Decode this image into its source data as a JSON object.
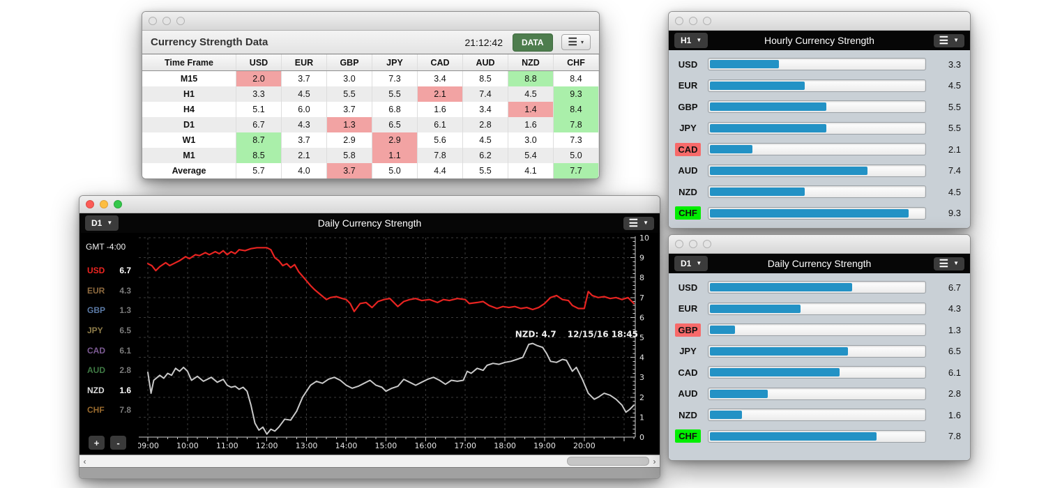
{
  "table_window": {
    "title": "Currency Strength Data",
    "clock": "21:12:42",
    "data_button_label": "DATA",
    "columns": [
      "Time Frame",
      "USD",
      "EUR",
      "GBP",
      "JPY",
      "CAD",
      "AUD",
      "NZD",
      "CHF"
    ],
    "rows": [
      {
        "label": "M15",
        "values": [
          "2.0",
          "3.7",
          "3.0",
          "7.3",
          "3.4",
          "8.5",
          "8.8",
          "8.4"
        ],
        "min": 0,
        "max": 6
      },
      {
        "label": "H1",
        "values": [
          "3.3",
          "4.5",
          "5.5",
          "5.5",
          "2.1",
          "7.4",
          "4.5",
          "9.3"
        ],
        "min": 4,
        "max": 7
      },
      {
        "label": "H4",
        "values": [
          "5.1",
          "6.0",
          "3.7",
          "6.8",
          "1.6",
          "3.4",
          "1.4",
          "8.4"
        ],
        "min": 6,
        "max": 7
      },
      {
        "label": "D1",
        "values": [
          "6.7",
          "4.3",
          "1.3",
          "6.5",
          "6.1",
          "2.8",
          "1.6",
          "7.8"
        ],
        "min": 2,
        "max": 7
      },
      {
        "label": "W1",
        "values": [
          "8.7",
          "3.7",
          "2.9",
          "2.9",
          "5.6",
          "4.5",
          "3.0",
          "7.3"
        ],
        "min": 3,
        "max": 0
      },
      {
        "label": "M1",
        "values": [
          "8.5",
          "2.1",
          "5.8",
          "1.1",
          "7.8",
          "6.2",
          "5.4",
          "5.0"
        ],
        "min": 3,
        "max": 0
      },
      {
        "label": "Average",
        "values": [
          "5.7",
          "4.0",
          "3.7",
          "5.0",
          "4.4",
          "5.5",
          "4.1",
          "7.7"
        ],
        "min": 2,
        "max": 7
      }
    ],
    "colors": {
      "min_cell": "#f2a3a3",
      "max_cell": "#aaefaa",
      "data_button": "#4e7d4e"
    }
  },
  "chart_window": {
    "timeframe_value": "D1",
    "title": "Daily Currency Strength",
    "gmt_label": "GMT -4:00",
    "zoom_in_label": "+",
    "zoom_out_label": "-",
    "legend": [
      {
        "code": "USD",
        "value": "6.7",
        "color": "#ee2521",
        "active": true
      },
      {
        "code": "EUR",
        "value": "4.3",
        "color": "#8f6b3f",
        "active": false
      },
      {
        "code": "GBP",
        "value": "1.3",
        "color": "#5b7aa6",
        "active": false
      },
      {
        "code": "JPY",
        "value": "6.5",
        "color": "#8f7d4a",
        "active": false
      },
      {
        "code": "CAD",
        "value": "6.1",
        "color": "#7d5b94",
        "active": false
      },
      {
        "code": "AUD",
        "value": "2.8",
        "color": "#3f7a44",
        "active": false
      },
      {
        "code": "NZD",
        "value": "1.6",
        "color": "#dcdcdc",
        "active": true
      },
      {
        "code": "CHF",
        "value": "7.8",
        "color": "#9a6b2e",
        "active": false
      }
    ]
  },
  "hourly_window": {
    "timeframe_value": "H1",
    "title": "Hourly Currency Strength"
  },
  "daily_window": {
    "timeframe_value": "D1",
    "title": "Daily Currency Strength"
  },
  "chart_data": [
    {
      "id": "daily_line",
      "type": "line",
      "title": "Daily Currency Strength",
      "ylim": [
        0,
        10
      ],
      "x_ticks": [
        "09:00",
        "10:00",
        "11:00",
        "12:00",
        "13:00",
        "14:00",
        "15:00",
        "16:00",
        "17:00",
        "18:00",
        "19:00",
        "20:00"
      ],
      "grid": true,
      "annotation": {
        "label": "NZD: 4.7",
        "timestamp": "12/15/16 18:45",
        "x": 18.75,
        "y": 4.7
      },
      "series": [
        {
          "name": "USD",
          "color": "#e82421",
          "x": [
            9.0,
            9.1,
            9.2,
            9.3,
            9.45,
            9.55,
            9.65,
            9.8,
            9.95,
            10.05,
            10.2,
            10.3,
            10.45,
            10.55,
            10.7,
            10.8,
            10.9,
            11.0,
            11.1,
            11.2,
            11.3,
            11.45,
            11.6,
            11.75,
            11.9,
            12.0,
            12.1,
            12.2,
            12.3,
            12.4,
            12.5,
            12.6,
            12.7,
            12.8,
            12.95,
            13.1,
            13.2,
            13.35,
            13.5,
            13.6,
            13.75,
            13.9,
            14.0,
            14.1,
            14.2,
            14.35,
            14.5,
            14.65,
            14.8,
            14.95,
            15.1,
            15.3,
            15.45,
            15.6,
            15.75,
            15.9,
            16.1,
            16.3,
            16.45,
            16.6,
            16.8,
            17.0,
            17.1,
            17.3,
            17.45,
            17.6,
            17.8,
            17.95,
            18.1,
            18.25,
            18.4,
            18.55,
            18.7,
            18.85,
            19.0,
            19.15,
            19.3,
            19.45,
            19.6,
            19.7,
            19.85,
            20.0,
            20.1,
            20.2,
            20.35,
            20.5,
            20.65,
            20.8,
            20.95,
            21.1,
            21.25
          ],
          "y": [
            8.7,
            8.6,
            8.35,
            8.55,
            8.75,
            8.6,
            8.7,
            8.85,
            9.05,
            8.95,
            9.15,
            9.1,
            9.25,
            9.15,
            9.3,
            9.2,
            9.35,
            9.15,
            9.3,
            9.2,
            9.4,
            9.35,
            9.45,
            9.5,
            9.5,
            9.5,
            9.4,
            9.0,
            8.85,
            8.6,
            8.7,
            8.5,
            8.65,
            8.3,
            7.95,
            7.6,
            7.4,
            7.15,
            6.9,
            7.0,
            7.05,
            6.95,
            6.9,
            6.7,
            6.3,
            6.7,
            6.75,
            6.5,
            6.8,
            6.9,
            6.95,
            6.55,
            6.8,
            6.9,
            6.95,
            6.85,
            6.9,
            6.75,
            6.9,
            6.85,
            6.95,
            6.9,
            6.7,
            6.75,
            6.8,
            6.6,
            6.45,
            6.55,
            6.5,
            6.55,
            6.45,
            6.5,
            6.4,
            6.5,
            6.7,
            7.0,
            7.1,
            6.9,
            6.85,
            6.6,
            6.45,
            6.45,
            7.3,
            7.1,
            7.0,
            7.05,
            6.95,
            7.0,
            6.9,
            7.0,
            6.7
          ]
        },
        {
          "name": "NZD",
          "color": "#c9c9c9",
          "x": [
            9.0,
            9.08,
            9.15,
            9.3,
            9.4,
            9.5,
            9.6,
            9.7,
            9.8,
            9.9,
            10.0,
            10.1,
            10.25,
            10.4,
            10.5,
            10.6,
            10.75,
            10.9,
            11.0,
            11.1,
            11.2,
            11.3,
            11.4,
            11.5,
            11.6,
            11.7,
            11.8,
            11.9,
            12.0,
            12.1,
            12.2,
            12.3,
            12.45,
            12.6,
            12.75,
            12.9,
            13.0,
            13.1,
            13.25,
            13.4,
            13.55,
            13.7,
            13.85,
            14.0,
            14.15,
            14.3,
            14.45,
            14.6,
            14.75,
            14.9,
            15.0,
            15.15,
            15.3,
            15.45,
            15.6,
            15.75,
            15.9,
            16.05,
            16.2,
            16.35,
            16.5,
            16.65,
            16.8,
            16.95,
            17.05,
            17.15,
            17.3,
            17.45,
            17.55,
            17.7,
            17.85,
            18.0,
            18.15,
            18.3,
            18.45,
            18.6,
            18.7,
            18.8,
            18.95,
            19.05,
            19.15,
            19.3,
            19.45,
            19.55,
            19.7,
            19.8,
            19.95,
            20.1,
            20.25,
            20.35,
            20.5,
            20.65,
            20.8,
            20.95,
            21.05,
            21.15,
            21.25
          ],
          "y": [
            3.25,
            2.2,
            2.85,
            3.1,
            2.95,
            3.2,
            3.1,
            3.45,
            3.3,
            3.5,
            3.3,
            2.85,
            3.05,
            2.8,
            2.9,
            3.0,
            2.75,
            2.9,
            2.6,
            2.5,
            2.55,
            2.4,
            2.5,
            2.3,
            1.6,
            0.7,
            0.35,
            0.5,
            0.15,
            0.4,
            0.3,
            0.5,
            0.9,
            0.85,
            1.3,
            2.0,
            2.3,
            2.6,
            2.8,
            2.7,
            2.9,
            3.0,
            2.85,
            2.6,
            2.45,
            2.55,
            2.7,
            2.85,
            2.6,
            2.5,
            2.3,
            2.45,
            2.55,
            2.9,
            2.75,
            2.6,
            2.75,
            2.9,
            3.0,
            2.85,
            2.65,
            2.85,
            2.8,
            2.85,
            3.3,
            3.2,
            3.45,
            3.35,
            3.6,
            3.7,
            3.65,
            3.75,
            3.8,
            3.9,
            4.0,
            4.65,
            4.7,
            4.6,
            4.5,
            4.2,
            3.8,
            3.75,
            3.9,
            3.85,
            3.3,
            3.5,
            2.9,
            2.2,
            1.9,
            2.0,
            2.2,
            2.1,
            1.9,
            1.6,
            1.25,
            1.4,
            1.6
          ]
        }
      ]
    },
    {
      "id": "hourly_bars",
      "type": "bar",
      "orientation": "horizontal",
      "categories": [
        "USD",
        "EUR",
        "GBP",
        "JPY",
        "CAD",
        "AUD",
        "NZD",
        "CHF"
      ],
      "values": [
        3.3,
        4.5,
        5.5,
        5.5,
        2.1,
        7.4,
        4.5,
        9.3
      ],
      "xlim": [
        0,
        10
      ],
      "min_index": 4,
      "max_index": 7,
      "bar_color": "#2392c5",
      "min_label_bg": "#f76a6a",
      "max_label_bg": "#00ee00"
    },
    {
      "id": "daily_bars",
      "type": "bar",
      "orientation": "horizontal",
      "categories": [
        "USD",
        "EUR",
        "GBP",
        "JPY",
        "CAD",
        "AUD",
        "NZD",
        "CHF"
      ],
      "values": [
        6.7,
        4.3,
        1.3,
        6.5,
        6.1,
        2.8,
        1.6,
        7.8
      ],
      "xlim": [
        0,
        10
      ],
      "min_index": 2,
      "max_index": 7,
      "bar_color": "#2392c5",
      "min_label_bg": "#f76a6a",
      "max_label_bg": "#00ee00"
    }
  ]
}
